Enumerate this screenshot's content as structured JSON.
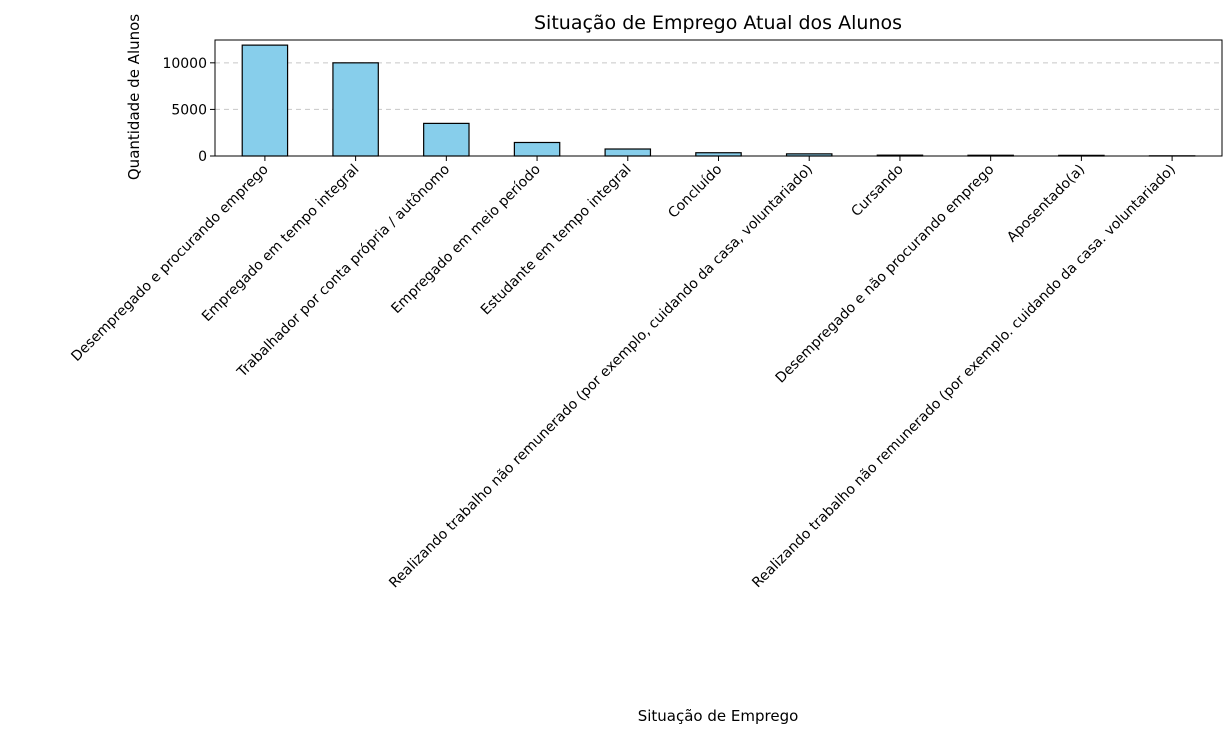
{
  "chart_data": {
    "type": "bar",
    "title": "Situação de Emprego Atual dos Alunos",
    "xlabel": "Situação de Emprego",
    "ylabel": "Quantidade de Alunos",
    "ylim": [
      0,
      12450
    ],
    "yticks": [
      0,
      5000,
      10000
    ],
    "grid": "y-dashed",
    "colors": {
      "bar_fill": "#87ceeb",
      "bar_edge": "#000000",
      "grid": "#c8c8c8"
    },
    "categories": [
      "Desempregado e procurando emprego",
      "Empregado em tempo integral",
      "Trabalhador por conta própria / autônomo",
      "Empregado em meio período",
      "Estudante em tempo integral",
      "Concluído",
      "Realizando trabalho não remunerado (por exemplo, cuidando da casa, voluntariado)",
      "Cursando",
      "Desempregado e não procurando emprego",
      "Aposentado(a)",
      "Realizando trabalho não remunerado (por exemplo. cuidando da casa. voluntariado)"
    ],
    "values": [
      11900,
      10000,
      3500,
      1450,
      750,
      350,
      230,
      90,
      80,
      70,
      20
    ]
  }
}
